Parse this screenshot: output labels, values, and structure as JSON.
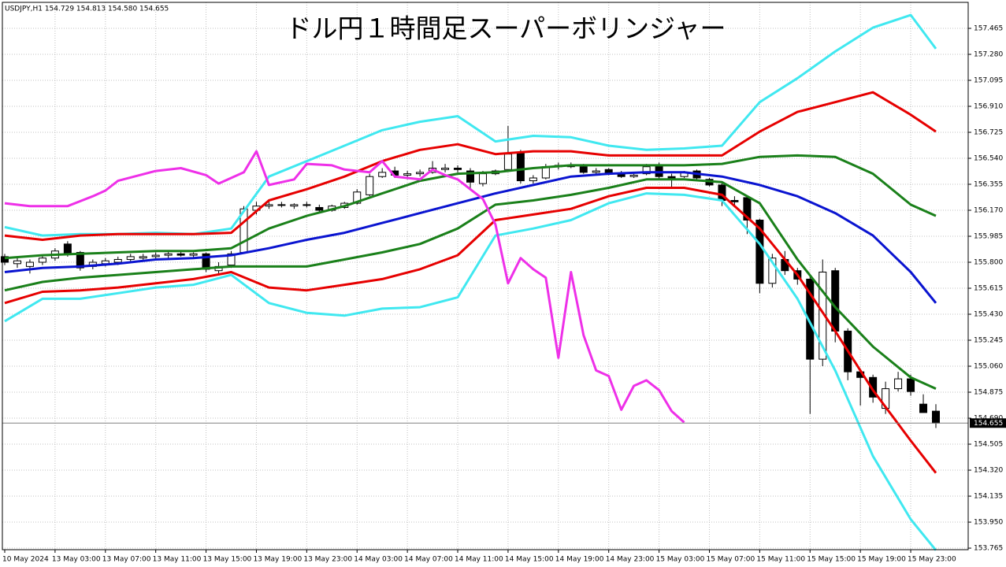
{
  "chart_data": {
    "type": "candlestick",
    "title": "ドル円１時間足スーパーボリンジャー",
    "symbol_info": "USDJPY,H1  154.729 154.813 154.580 154.655",
    "categories": [
      "10 May 2024",
      null,
      null,
      null,
      "13 May 03:00",
      null,
      null,
      null,
      "13 May 07:00",
      null,
      null,
      null,
      "13 May 11:00",
      null,
      null,
      null,
      "13 May 15:00",
      null,
      null,
      null,
      "13 May 19:00",
      null,
      null,
      null,
      "13 May 23:00",
      null,
      null,
      null,
      "14 May 03:00",
      null,
      null,
      null,
      "14 May 07:00",
      null,
      null,
      null,
      "14 May 11:00",
      null,
      null,
      null,
      "14 May 15:00",
      null,
      null,
      null,
      "14 May 19:00",
      null,
      null,
      null,
      "14 May 23:00",
      null,
      null,
      null,
      "15 May 03:00",
      null,
      null,
      null,
      "15 May 07:00",
      null,
      null,
      null,
      "15 May 11:00",
      null,
      null,
      null,
      "15 May 15:00",
      null,
      null,
      null,
      "15 May 19:00",
      null,
      null,
      null,
      "15 May 23:00",
      null,
      null
    ],
    "open": [
      155.84,
      155.79,
      155.77,
      155.8,
      155.83,
      155.93,
      155.87,
      155.77,
      155.79,
      155.8,
      155.82,
      155.83,
      155.84,
      155.85,
      155.86,
      155.85,
      155.86,
      155.74,
      155.78,
      155.87,
      156.17,
      156.2,
      156.21,
      156.2,
      156.21,
      156.19,
      156.17,
      156.19,
      156.22,
      156.28,
      156.41,
      156.45,
      156.42,
      156.43,
      156.44,
      156.46,
      156.47,
      156.45,
      156.36,
      156.43,
      156.46,
      156.58,
      156.38,
      156.4,
      156.48,
      156.49,
      156.48,
      156.44,
      156.46,
      156.43,
      156.41,
      156.43,
      156.49,
      156.41,
      156.41,
      156.45,
      156.39,
      156.35,
      156.24,
      156.26,
      156.1,
      155.65,
      155.82,
      155.74,
      155.68,
      155.11,
      155.74,
      155.31,
      155.02,
      154.98,
      154.76,
      154.9,
      154.97,
      154.79,
      154.74
    ],
    "high": [
      155.86,
      155.83,
      155.82,
      155.85,
      155.9,
      155.95,
      155.88,
      155.82,
      155.83,
      155.84,
      155.86,
      155.86,
      155.87,
      155.88,
      155.88,
      155.87,
      155.87,
      155.8,
      155.88,
      156.2,
      156.23,
      156.23,
      156.23,
      156.22,
      156.23,
      156.21,
      156.21,
      156.23,
      156.32,
      156.43,
      156.47,
      156.48,
      156.45,
      156.46,
      156.52,
      156.5,
      156.49,
      156.47,
      156.45,
      156.46,
      156.77,
      156.6,
      156.42,
      156.5,
      156.51,
      156.51,
      156.5,
      156.47,
      156.47,
      156.45,
      156.43,
      156.5,
      156.51,
      156.43,
      156.45,
      156.46,
      156.4,
      156.37,
      156.27,
      156.27,
      156.11,
      155.86,
      155.88,
      155.76,
      155.7,
      155.82,
      155.76,
      155.33,
      155.04,
      155.0,
      154.95,
      155.02,
      155.0,
      154.86,
      154.79
    ],
    "low": [
      155.78,
      155.76,
      155.72,
      155.78,
      155.81,
      155.84,
      155.74,
      155.75,
      155.77,
      155.78,
      155.8,
      155.81,
      155.82,
      155.83,
      155.84,
      155.83,
      155.73,
      155.71,
      155.76,
      155.86,
      156.14,
      156.18,
      156.19,
      156.18,
      156.19,
      156.15,
      156.16,
      156.18,
      156.21,
      156.27,
      156.4,
      156.4,
      156.39,
      156.41,
      156.43,
      156.44,
      156.44,
      156.32,
      156.34,
      156.42,
      156.45,
      156.36,
      156.36,
      156.39,
      156.46,
      156.47,
      156.43,
      156.43,
      156.42,
      156.4,
      156.4,
      156.42,
      156.39,
      156.33,
      156.4,
      156.38,
      156.34,
      156.2,
      156.2,
      156.0,
      155.58,
      155.62,
      155.71,
      155.64,
      154.72,
      155.06,
      155.23,
      154.96,
      154.78,
      154.8,
      154.72,
      154.88,
      154.85,
      154.73,
      154.62
    ],
    "close": [
      155.8,
      155.81,
      155.8,
      155.83,
      155.88,
      155.86,
      155.76,
      155.8,
      155.81,
      155.82,
      155.84,
      155.84,
      155.85,
      155.86,
      155.85,
      155.86,
      155.75,
      155.77,
      155.86,
      156.18,
      156.2,
      156.21,
      156.21,
      156.21,
      156.21,
      156.17,
      156.2,
      156.22,
      156.3,
      156.41,
      156.44,
      156.42,
      156.43,
      156.44,
      156.47,
      156.47,
      156.46,
      156.37,
      156.43,
      156.45,
      156.57,
      156.38,
      156.4,
      156.48,
      156.49,
      156.48,
      156.44,
      156.45,
      156.43,
      156.41,
      156.42,
      156.48,
      156.41,
      156.4,
      156.44,
      156.4,
      156.35,
      156.24,
      156.23,
      156.1,
      155.65,
      155.83,
      155.74,
      155.68,
      155.11,
      155.73,
      155.31,
      155.02,
      154.98,
      154.84,
      154.9,
      154.97,
      154.88,
      154.73,
      154.655
    ],
    "up_color": "#ffffff",
    "down_color": "#000000",
    "bands": [
      {
        "color": "#40e8f0",
        "x": [
          0,
          3,
          6,
          9,
          12,
          15,
          18,
          21,
          24,
          27,
          30,
          33,
          36,
          39,
          42,
          45,
          48,
          51,
          54,
          57,
          60,
          63,
          66,
          69,
          72,
          74
        ],
        "values": [
          156.05,
          155.99,
          156.0,
          156.0,
          156.01,
          156.0,
          156.04,
          156.41,
          156.52,
          156.63,
          156.74,
          156.8,
          156.84,
          156.66,
          156.7,
          156.69,
          156.63,
          156.6,
          156.61,
          156.63,
          156.94,
          157.11,
          157.3,
          157.47,
          157.56,
          157.32
        ]
      },
      {
        "color": "#40e8f0",
        "x": [
          0,
          3,
          6,
          9,
          12,
          15,
          18,
          21,
          24,
          27,
          30,
          33,
          36,
          39,
          42,
          45,
          48,
          51,
          54,
          57,
          60,
          63,
          66,
          69,
          72,
          74
        ],
        "values": [
          155.38,
          155.54,
          155.54,
          155.58,
          155.62,
          155.64,
          155.71,
          155.51,
          155.44,
          155.42,
          155.47,
          155.48,
          155.55,
          155.99,
          156.04,
          156.1,
          156.22,
          156.29,
          156.28,
          156.24,
          155.93,
          155.54,
          155.03,
          154.42,
          153.97,
          153.75
        ]
      },
      {
        "color": "#e60000",
        "x": [
          0,
          3,
          6,
          9,
          12,
          15,
          18,
          21,
          24,
          27,
          30,
          33,
          36,
          39,
          42,
          45,
          48,
          51,
          54,
          57,
          60,
          63,
          66,
          69,
          72,
          74
        ],
        "values": [
          155.99,
          155.96,
          155.99,
          156.0,
          156.0,
          156.0,
          156.01,
          156.24,
          156.32,
          156.41,
          156.52,
          156.6,
          156.64,
          156.57,
          156.59,
          156.59,
          156.56,
          156.56,
          156.56,
          156.56,
          156.73,
          156.87,
          156.94,
          157.01,
          156.85,
          156.73
        ]
      },
      {
        "color": "#e60000",
        "x": [
          0,
          3,
          6,
          9,
          12,
          15,
          18,
          21,
          24,
          27,
          30,
          33,
          36,
          39,
          42,
          45,
          48,
          51,
          54,
          57,
          60,
          63,
          66,
          69,
          72,
          74
        ],
        "values": [
          155.51,
          155.59,
          155.6,
          155.62,
          155.65,
          155.68,
          155.73,
          155.62,
          155.6,
          155.64,
          155.68,
          155.75,
          155.85,
          156.1,
          156.14,
          156.18,
          156.27,
          156.33,
          156.33,
          156.28,
          156.04,
          155.71,
          155.31,
          154.89,
          154.53,
          154.3
        ]
      },
      {
        "color": "#1a801a",
        "x": [
          0,
          3,
          6,
          9,
          12,
          15,
          18,
          21,
          24,
          27,
          30,
          33,
          36,
          39,
          42,
          45,
          48,
          51,
          54,
          57,
          60,
          63,
          66,
          69,
          72,
          74
        ],
        "values": [
          155.83,
          155.85,
          155.86,
          155.87,
          155.88,
          155.88,
          155.9,
          156.04,
          156.13,
          156.2,
          156.29,
          156.38,
          156.43,
          156.44,
          156.47,
          156.49,
          156.49,
          156.49,
          156.49,
          156.5,
          156.55,
          156.56,
          156.55,
          156.43,
          156.21,
          156.13
        ]
      },
      {
        "color": "#1a801a",
        "x": [
          0,
          3,
          6,
          9,
          12,
          15,
          18,
          21,
          24,
          27,
          30,
          33,
          36,
          39,
          42,
          45,
          48,
          51,
          54,
          57,
          60,
          63,
          66,
          69,
          72,
          74
        ],
        "values": [
          155.6,
          155.66,
          155.69,
          155.71,
          155.73,
          155.75,
          155.77,
          155.77,
          155.77,
          155.82,
          155.87,
          155.93,
          156.04,
          156.21,
          156.24,
          156.28,
          156.33,
          156.39,
          156.39,
          156.37,
          156.22,
          155.82,
          155.48,
          155.2,
          154.98,
          154.9
        ]
      },
      {
        "color": "#0a14d0",
        "x": [
          0,
          3,
          6,
          9,
          12,
          15,
          18,
          21,
          24,
          27,
          30,
          33,
          36,
          39,
          42,
          45,
          48,
          51,
          54,
          57,
          60,
          63,
          66,
          69,
          72,
          74
        ],
        "values": [
          155.73,
          155.76,
          155.77,
          155.79,
          155.82,
          155.83,
          155.85,
          155.9,
          155.96,
          156.01,
          156.08,
          156.15,
          156.22,
          156.29,
          156.35,
          156.41,
          156.43,
          156.44,
          156.44,
          156.41,
          156.35,
          156.27,
          156.15,
          155.99,
          155.73,
          155.51
        ]
      },
      {
        "color": "#ee30e8",
        "x": [
          0,
          2,
          5,
          7,
          8,
          9,
          12,
          14,
          16,
          17,
          19,
          20,
          21,
          23,
          24,
          26,
          27,
          29,
          30,
          31,
          33,
          34,
          35,
          36,
          37,
          38,
          39,
          40,
          41,
          42,
          43,
          44,
          45,
          46,
          47,
          48,
          49,
          50,
          51,
          52,
          53,
          54
        ],
        "values": [
          156.22,
          156.2,
          156.2,
          156.27,
          156.31,
          156.38,
          156.45,
          156.47,
          156.42,
          156.36,
          156.44,
          156.59,
          156.35,
          156.39,
          156.5,
          156.49,
          156.46,
          156.44,
          156.52,
          156.41,
          156.39,
          156.46,
          156.42,
          156.39,
          156.32,
          156.25,
          156.07,
          155.65,
          155.83,
          155.75,
          155.69,
          155.12,
          155.73,
          155.28,
          155.03,
          154.99,
          154.75,
          154.92,
          154.96,
          154.89,
          154.74,
          154.66
        ]
      }
    ],
    "ylim": [
      153.754,
      157.65
    ],
    "yticks": [
      157.465,
      {
        "value": 157.28,
        "label": "157.280"
      },
      157.095,
      {
        "value": 156.91,
        "label": "156.910"
      },
      156.725,
      {
        "value": 156.54,
        "label": "156.540"
      },
      156.355,
      {
        "value": 156.17,
        "label": "156.170"
      },
      155.985,
      {
        "value": 155.8,
        "label": "155.800"
      },
      155.615,
      {
        "value": 155.43,
        "label": "155.430"
      },
      155.245,
      {
        "value": 155.06,
        "label": "155.060"
      },
      154.875,
      {
        "value": 154.69,
        "label": "154.690"
      },
      154.505,
      {
        "value": 154.32,
        "label": "154.320"
      },
      154.135,
      {
        "value": 153.95,
        "label": "153.950"
      },
      153.765
    ],
    "grid": true,
    "current_price": 154.655
  }
}
